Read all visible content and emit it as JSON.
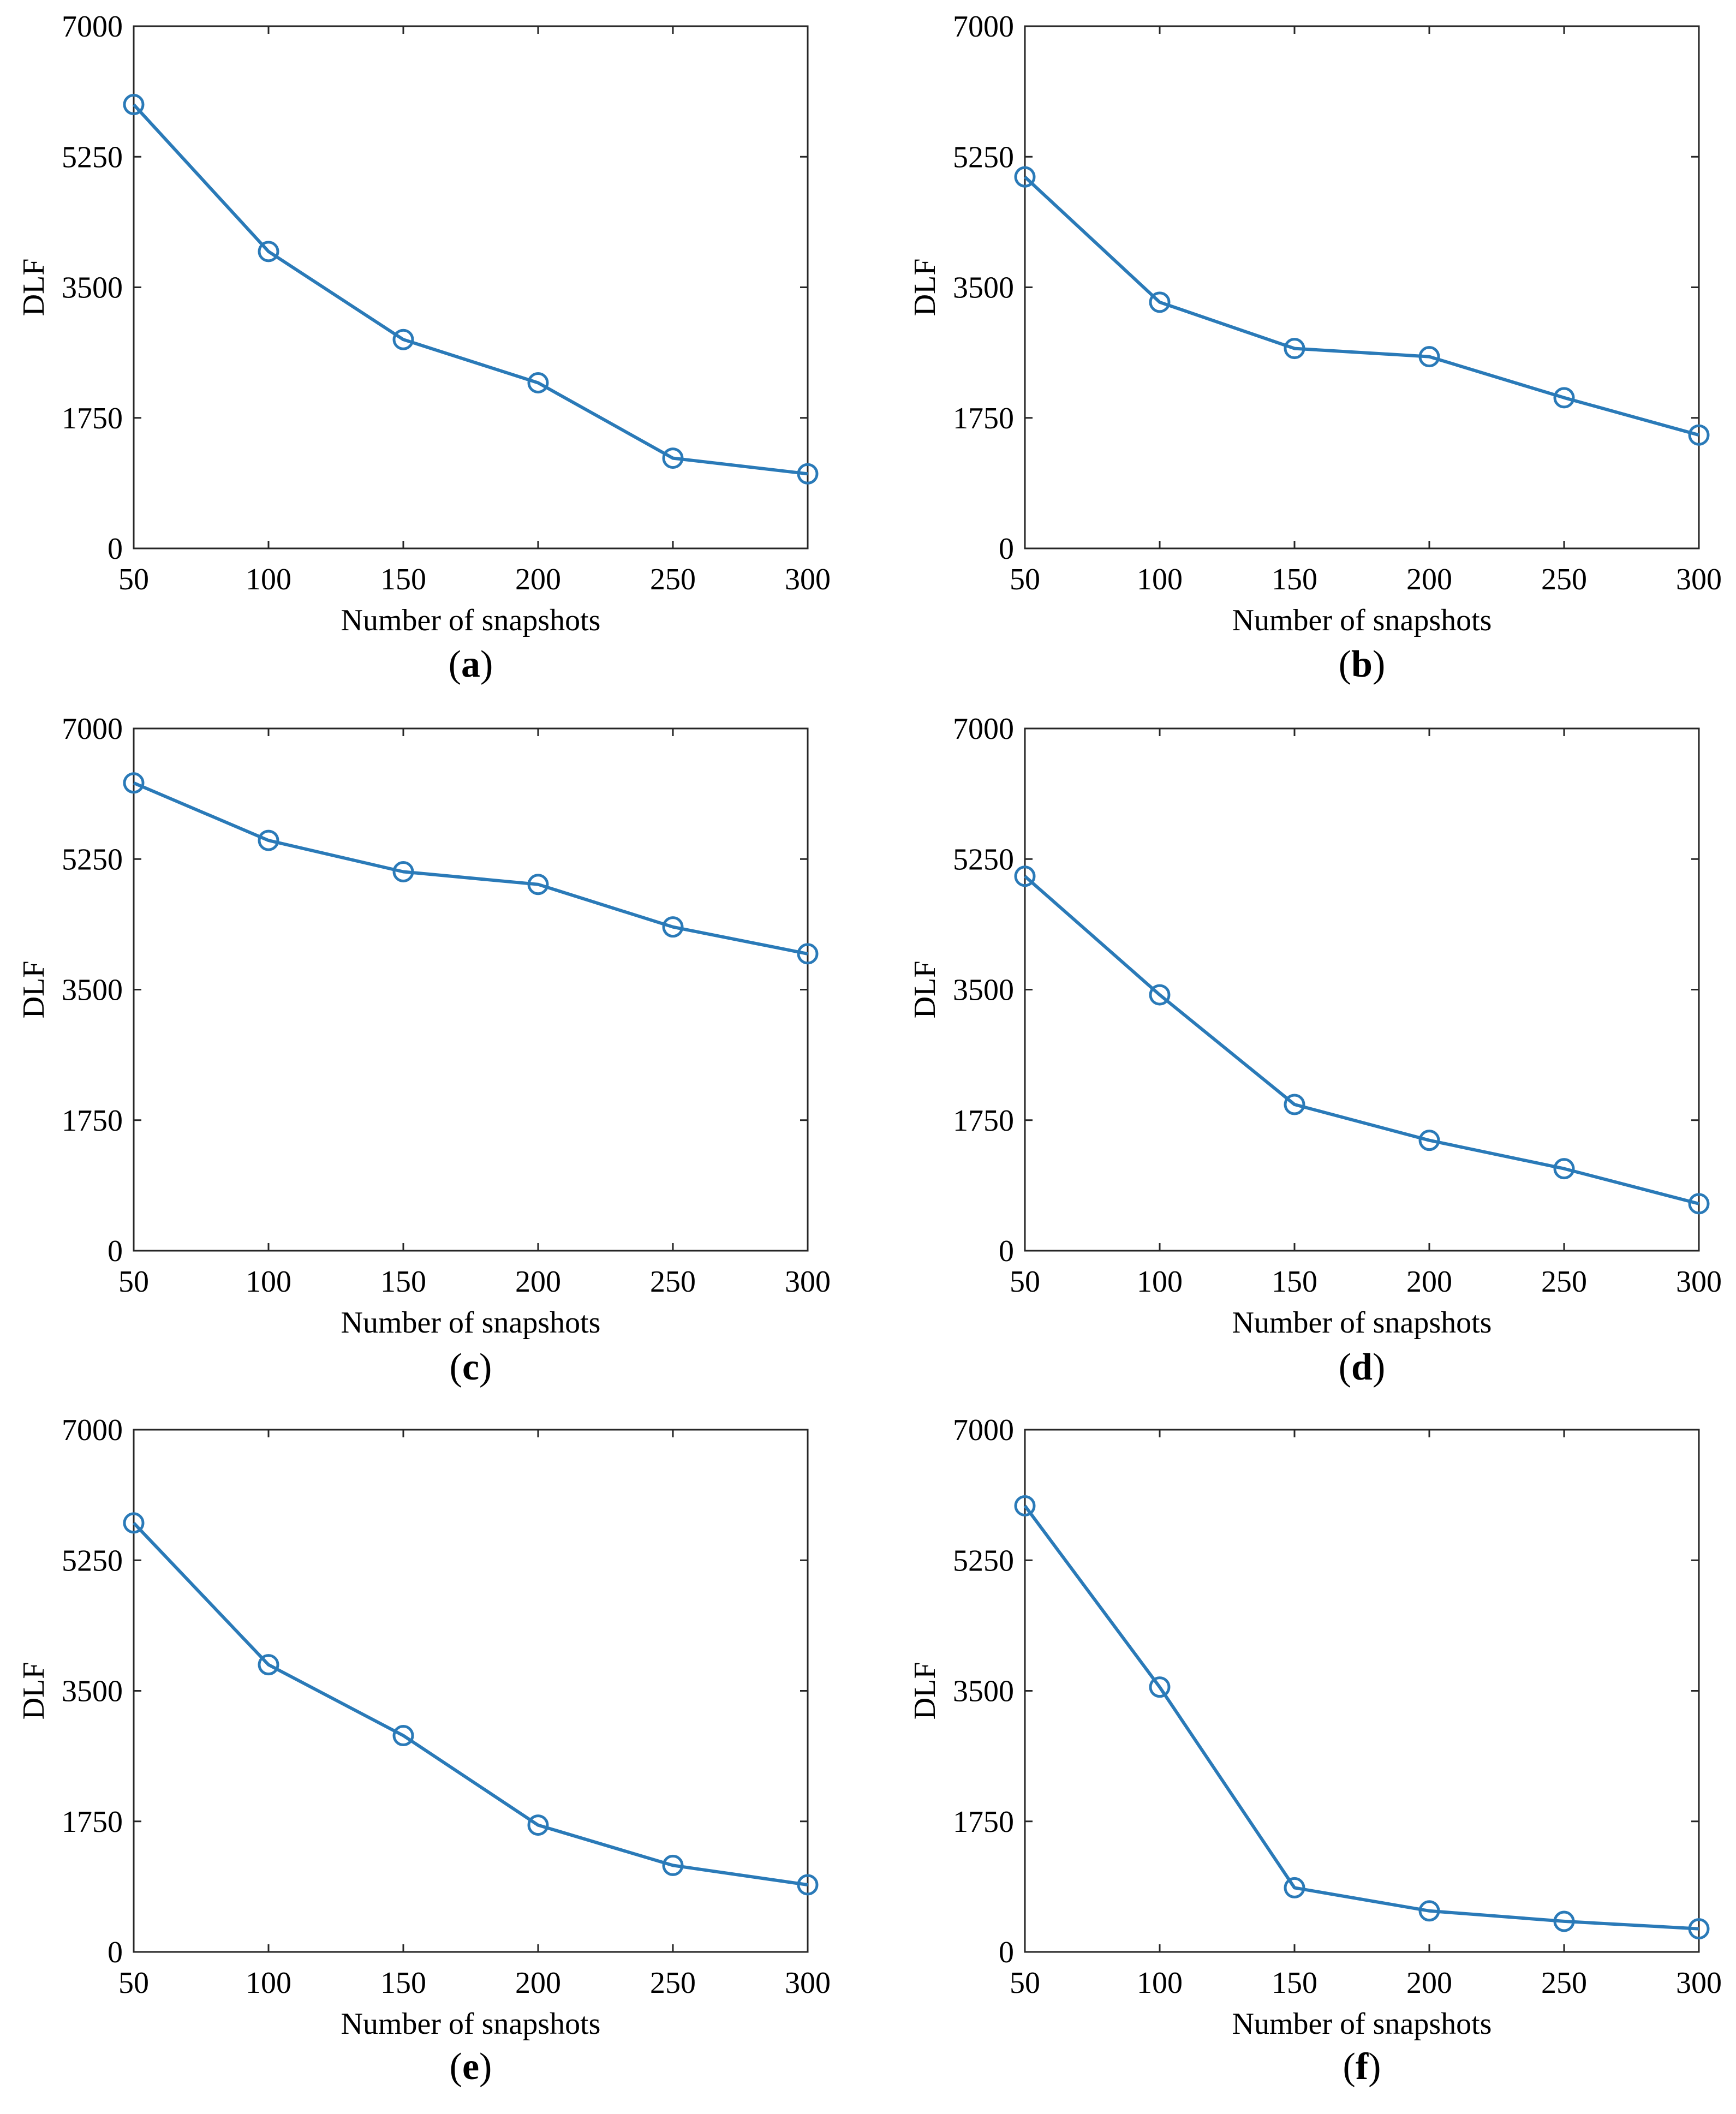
{
  "figure": {
    "panels": [
      {
        "letter": "a",
        "open": "(",
        "close": ")"
      },
      {
        "letter": "b",
        "open": "(",
        "close": ")"
      },
      {
        "letter": "c",
        "open": "(",
        "close": ")"
      },
      {
        "letter": "d",
        "open": "(",
        "close": ")"
      },
      {
        "letter": "e",
        "open": "(",
        "close": ")"
      },
      {
        "letter": "f",
        "open": "(",
        "close": ")"
      }
    ]
  },
  "chart_data": [
    {
      "type": "line",
      "xlabel": "Number of snapshots",
      "ylabel": "DLF",
      "xlim": [
        50,
        300
      ],
      "ylim": [
        0,
        7000
      ],
      "xticks": [
        "50",
        "100",
        "150",
        "200",
        "250",
        "300"
      ],
      "yticks": [
        "0",
        "1750",
        "3500",
        "5250",
        "7000"
      ],
      "grid": false,
      "color": "#2a7ab8",
      "marker": "circle",
      "series": [
        {
          "x": [
            50,
            100,
            150,
            200,
            250,
            300
          ],
          "y": [
            5950,
            3980,
            2800,
            2220,
            1210,
            1000
          ]
        }
      ]
    },
    {
      "type": "line",
      "xlabel": "Number of snapshots",
      "ylabel": "DLF",
      "xlim": [
        50,
        300
      ],
      "ylim": [
        0,
        7000
      ],
      "xticks": [
        "50",
        "100",
        "150",
        "200",
        "250",
        "300"
      ],
      "yticks": [
        "0",
        "1750",
        "3500",
        "5250",
        "7000"
      ],
      "grid": false,
      "color": "#2a7ab8",
      "marker": "circle",
      "series": [
        {
          "x": [
            50,
            100,
            150,
            200,
            250,
            300
          ],
          "y": [
            4980,
            3300,
            2680,
            2570,
            2020,
            1520
          ]
        }
      ]
    },
    {
      "type": "line",
      "xlabel": "Number of snapshots",
      "ylabel": "DLF",
      "xlim": [
        50,
        300
      ],
      "ylim": [
        0,
        7000
      ],
      "xticks": [
        "50",
        "100",
        "150",
        "200",
        "250",
        "300"
      ],
      "yticks": [
        "0",
        "1750",
        "3500",
        "5250",
        "7000"
      ],
      "grid": false,
      "color": "#2a7ab8",
      "marker": "circle",
      "series": [
        {
          "x": [
            50,
            100,
            150,
            200,
            250,
            300
          ],
          "y": [
            6270,
            5500,
            5080,
            4910,
            4340,
            3980
          ]
        }
      ]
    },
    {
      "type": "line",
      "xlabel": "Number of snapshots",
      "ylabel": "DLF",
      "xlim": [
        50,
        300
      ],
      "ylim": [
        0,
        7000
      ],
      "xticks": [
        "50",
        "100",
        "150",
        "200",
        "250",
        "300"
      ],
      "yticks": [
        "0",
        "1750",
        "3500",
        "5250",
        "7000"
      ],
      "grid": false,
      "color": "#2a7ab8",
      "marker": "circle",
      "series": [
        {
          "x": [
            50,
            100,
            150,
            200,
            250,
            300
          ],
          "y": [
            5020,
            3430,
            1960,
            1480,
            1100,
            630
          ]
        }
      ]
    },
    {
      "type": "line",
      "xlabel": "Number of snapshots",
      "ylabel": "DLF",
      "xlim": [
        50,
        300
      ],
      "ylim": [
        0,
        7000
      ],
      "xticks": [
        "50",
        "100",
        "150",
        "200",
        "250",
        "300"
      ],
      "yticks": [
        "0",
        "1750",
        "3500",
        "5250",
        "7000"
      ],
      "grid": false,
      "color": "#2a7ab8",
      "marker": "circle",
      "series": [
        {
          "x": [
            50,
            100,
            150,
            200,
            250,
            300
          ],
          "y": [
            5750,
            3850,
            2900,
            1700,
            1160,
            900
          ]
        }
      ]
    },
    {
      "type": "line",
      "xlabel": "Number of snapshots",
      "ylabel": "DLF",
      "xlim": [
        50,
        300
      ],
      "ylim": [
        0,
        7000
      ],
      "xticks": [
        "50",
        "100",
        "150",
        "200",
        "250",
        "300"
      ],
      "yticks": [
        "0",
        "1750",
        "3500",
        "5250",
        "7000"
      ],
      "grid": false,
      "color": "#2a7ab8",
      "marker": "circle",
      "series": [
        {
          "x": [
            50,
            100,
            150,
            200,
            250,
            300
          ],
          "y": [
            5980,
            3550,
            860,
            550,
            410,
            310
          ]
        }
      ]
    }
  ]
}
